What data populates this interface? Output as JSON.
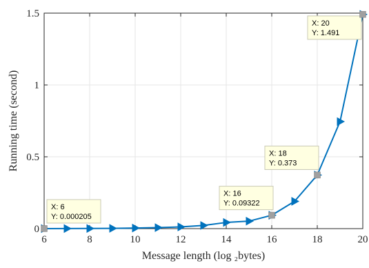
{
  "chart_data": {
    "type": "line",
    "xlabel": "Message length (log ₂bytes)",
    "ylabel": "Running time (second)",
    "xlim": [
      6,
      20
    ],
    "ylim": [
      0,
      1.5
    ],
    "x_ticks": [
      "6",
      "8",
      "10",
      "12",
      "14",
      "16",
      "18",
      "20"
    ],
    "y_ticks": [
      "0",
      "0.5",
      "1",
      "1.5"
    ],
    "grid": true,
    "line_color": "#0072BD",
    "series": [
      {
        "x": [
          6,
          7,
          8,
          9,
          10,
          11,
          12,
          13,
          14,
          15,
          16,
          17,
          18,
          19,
          20
        ],
        "values": [
          0.000205,
          0.0005,
          0.001,
          0.002,
          0.004,
          0.007,
          0.012,
          0.022,
          0.043,
          0.052,
          0.09322,
          0.19,
          0.373,
          0.745,
          1.491
        ]
      }
    ],
    "annotations": [
      {
        "x": 6,
        "y": 0.000205,
        "line1": "X: 6",
        "line2": "Y: 0.000205"
      },
      {
        "x": 16,
        "y": 0.09322,
        "line1": "X: 16",
        "line2": "Y: 0.09322"
      },
      {
        "x": 18,
        "y": 0.373,
        "line1": "X: 18",
        "line2": "Y: 0.373"
      },
      {
        "x": 20,
        "y": 1.491,
        "line1": "X: 20",
        "line2": "Y: 1.491"
      }
    ]
  }
}
